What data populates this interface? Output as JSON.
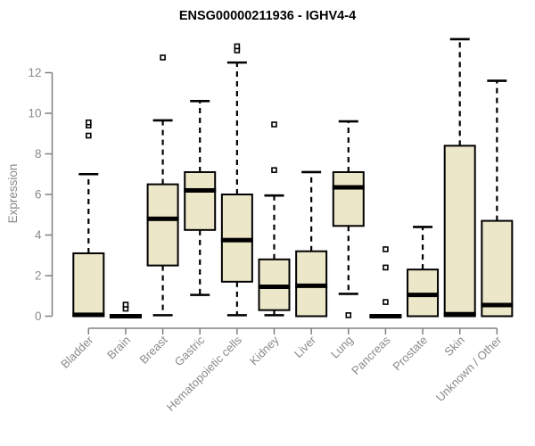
{
  "chart_data": {
    "type": "boxplot",
    "title": "ENSG00000211936 - IGHV4-4",
    "xlabel": "",
    "ylabel": "Expression",
    "ylim": [
      0,
      13.8
    ],
    "yticks": [
      0,
      2,
      4,
      6,
      8,
      10,
      12
    ],
    "grid": false,
    "legend": "none",
    "categories": [
      "Bladder",
      "Brain",
      "Breast",
      "Gastric",
      "Hematopoietic cells",
      "Kidney",
      "Liver",
      "Lung",
      "Pancreas",
      "Prostate",
      "Skin",
      "Unknown / Other"
    ],
    "boxes": [
      {
        "label": "Bladder",
        "lo": 0,
        "q1": 0,
        "med": 0.07,
        "q3": 3.1,
        "hi": 7.0,
        "outliers": [
          8.9,
          9.4,
          9.55
        ]
      },
      {
        "label": "Brain",
        "lo": 0,
        "q1": 0,
        "med": 0,
        "q3": 0,
        "hi": 0,
        "outliers": [
          0.37,
          0.57
        ]
      },
      {
        "label": "Breast",
        "lo": 0.05,
        "q1": 2.5,
        "med": 4.8,
        "q3": 6.5,
        "hi": 9.65,
        "outliers": [
          12.75
        ]
      },
      {
        "label": "Gastric",
        "lo": 1.05,
        "q1": 4.25,
        "med": 6.2,
        "q3": 7.1,
        "hi": 10.6,
        "outliers": []
      },
      {
        "label": "Hematopoietic cells",
        "lo": 0.05,
        "q1": 1.7,
        "med": 3.75,
        "q3": 6.0,
        "hi": 12.5,
        "outliers": [
          13.1,
          13.3
        ]
      },
      {
        "label": "Kidney",
        "lo": 0.05,
        "q1": 0.3,
        "med": 1.45,
        "q3": 2.8,
        "hi": 5.95,
        "outliers": [
          7.2,
          9.45
        ]
      },
      {
        "label": "Liver",
        "lo": 0,
        "q1": 0,
        "med": 1.5,
        "q3": 3.2,
        "hi": 7.1,
        "outliers": []
      },
      {
        "label": "Lung",
        "lo": 1.1,
        "q1": 4.45,
        "med": 6.35,
        "q3": 7.1,
        "hi": 9.6,
        "outliers": [
          0.05
        ]
      },
      {
        "label": "Pancreas",
        "lo": 0,
        "q1": 0,
        "med": 0,
        "q3": 0,
        "hi": 0,
        "outliers": [
          0.7,
          2.4,
          3.3
        ]
      },
      {
        "label": "Prostate",
        "lo": 0,
        "q1": 0,
        "med": 1.05,
        "q3": 2.3,
        "hi": 4.4,
        "outliers": []
      },
      {
        "label": "Skin",
        "lo": 0,
        "q1": 0,
        "med": 0.1,
        "q3": 8.4,
        "hi": 13.65,
        "outliers": []
      },
      {
        "label": "Unknown / Other",
        "lo": 0,
        "q1": 0,
        "med": 0.55,
        "q3": 4.7,
        "hi": 11.6,
        "outliers": []
      }
    ],
    "colors": {
      "box_fill": "#EDE7C9",
      "box_stroke": "#000000",
      "median": "#000000",
      "whisker": "#000000",
      "outlier_stroke": "#000000",
      "outlier_fill": "#ffffff",
      "axis_line": "#808080",
      "axis_text": "#8a8a8a",
      "title": "#000000",
      "background": "#ffffff"
    }
  }
}
